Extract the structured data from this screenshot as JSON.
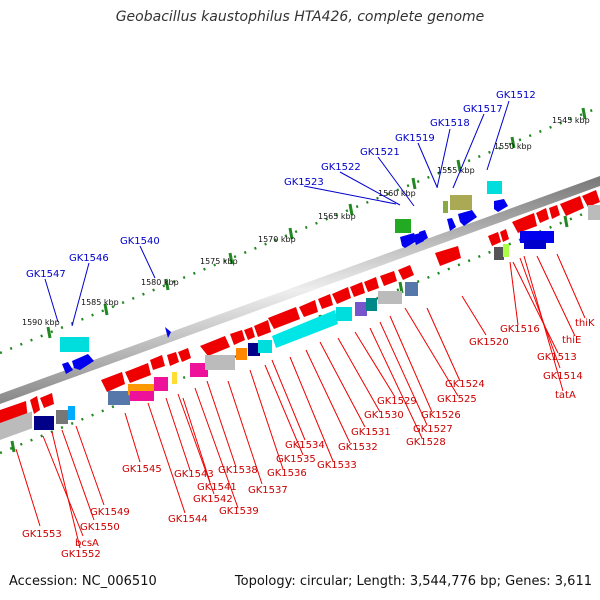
{
  "header": {
    "title": "Geobacillus kaustophilus HTA426, complete genome"
  },
  "footer": {
    "accession": "Accession: NC_006510",
    "topology": "Topology: circular; Length: 3,544,776 bp; Genes: 3,611"
  },
  "ruler_labels": [
    "1545 kbp",
    "1550 kbp",
    "1555 kbp",
    "1560 kbp",
    "1565 kbp",
    "1570 kbp",
    "1575 kbp",
    "1580 kbp",
    "1585 kbp",
    "1590 kbp"
  ],
  "genes_top": [
    "GK1512",
    "GK1517",
    "GK1518",
    "GK1519",
    "GK1521",
    "GK1522",
    "GK1523",
    "GK1540",
    "GK1546",
    "GK1547"
  ],
  "genes_bottom": [
    "GK1553",
    "bcsA",
    "GK1552",
    "GK1550",
    "GK1549",
    "GK1545",
    "GK1544",
    "GK1543",
    "GK1541",
    "GK1542",
    "GK1539",
    "GK1538",
    "GK1537",
    "GK1536",
    "GK1535",
    "GK1534",
    "GK1533",
    "GK1532",
    "GK1531",
    "GK1530",
    "GK1529",
    "GK1528",
    "GK1527",
    "GK1526",
    "GK1525",
    "GK1524",
    "GK1520",
    "GK1516",
    "GK1513",
    "GK1514",
    "tatA",
    "thiE",
    "thiK"
  ],
  "colors": {
    "forward_label": "#0000cc",
    "reverse_label": "#cc0000",
    "red": "#ee0000",
    "blue": "#0000ee",
    "cyan": "#00e0e0",
    "gray": "#bbbbbb",
    "green": "#22aa22",
    "olive": "#aaaa55",
    "magenta": "#ee1199",
    "orange": "#ff9900",
    "navy": "#000088",
    "steel": "#5577aa",
    "violet": "#7755cc"
  }
}
